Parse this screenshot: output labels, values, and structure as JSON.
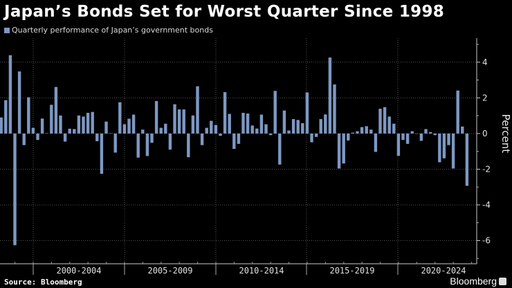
{
  "chart_data": {
    "type": "bar",
    "title": "Japan’s Bonds Set for Worst Quarter Since 1998",
    "legend": [
      "Quarterly performance of Japan’s government bonds"
    ],
    "legend_placement": "top-left",
    "ylabel": "Percent",
    "y_axis_side": "right",
    "ylim": [
      -7.3,
      5.35
    ],
    "yticks": [
      4,
      2,
      0,
      -2,
      -4,
      -6
    ],
    "x_tick_labels": [
      "2000-2004",
      "2005-2009",
      "2010-2014",
      "2015-2019",
      "2020-2024"
    ],
    "grid": true,
    "bar_color": "#7d98c2",
    "values": [
      0.9,
      1.87,
      4.39,
      -6.26,
      3.48,
      -0.65,
      2.03,
      0.32,
      -0.36,
      0.84,
      0.02,
      1.61,
      2.61,
      1.01,
      -0.45,
      0.27,
      0.25,
      1.01,
      0.95,
      1.16,
      1.21,
      -0.43,
      -2.26,
      0.67,
      0.02,
      -1.07,
      1.75,
      0.52,
      0.83,
      1.06,
      -1.35,
      0.22,
      -1.26,
      -0.52,
      1.82,
      0.32,
      0.55,
      -0.9,
      1.64,
      1.35,
      1.35,
      -1.33,
      1.01,
      2.65,
      -0.65,
      0.32,
      0.71,
      0.48,
      -0.13,
      2.32,
      1.1,
      -0.86,
      -0.58,
      1.16,
      1.12,
      0.45,
      0.28,
      1.06,
      0.52,
      -0.09,
      2.39,
      -1.74,
      1.29,
      0.17,
      0.81,
      0.76,
      0.58,
      2.3,
      -0.49,
      -0.19,
      0.81,
      1.07,
      4.26,
      2.75,
      -1.96,
      -1.68,
      -0.39,
      0.05,
      0.13,
      0.36,
      0.41,
      0.22,
      -1.03,
      1.39,
      1.48,
      0.95,
      0.55,
      -1.25,
      -0.36,
      -0.58,
      0.13,
      -0.02,
      -0.41,
      0.25,
      0.08,
      -0.09,
      -1.61,
      -1.39,
      -0.65,
      -1.96,
      2.41,
      0.39,
      -2.93
    ]
  },
  "footer": {
    "source": "Source: Bloomberg",
    "brand": "Bloomberg"
  }
}
